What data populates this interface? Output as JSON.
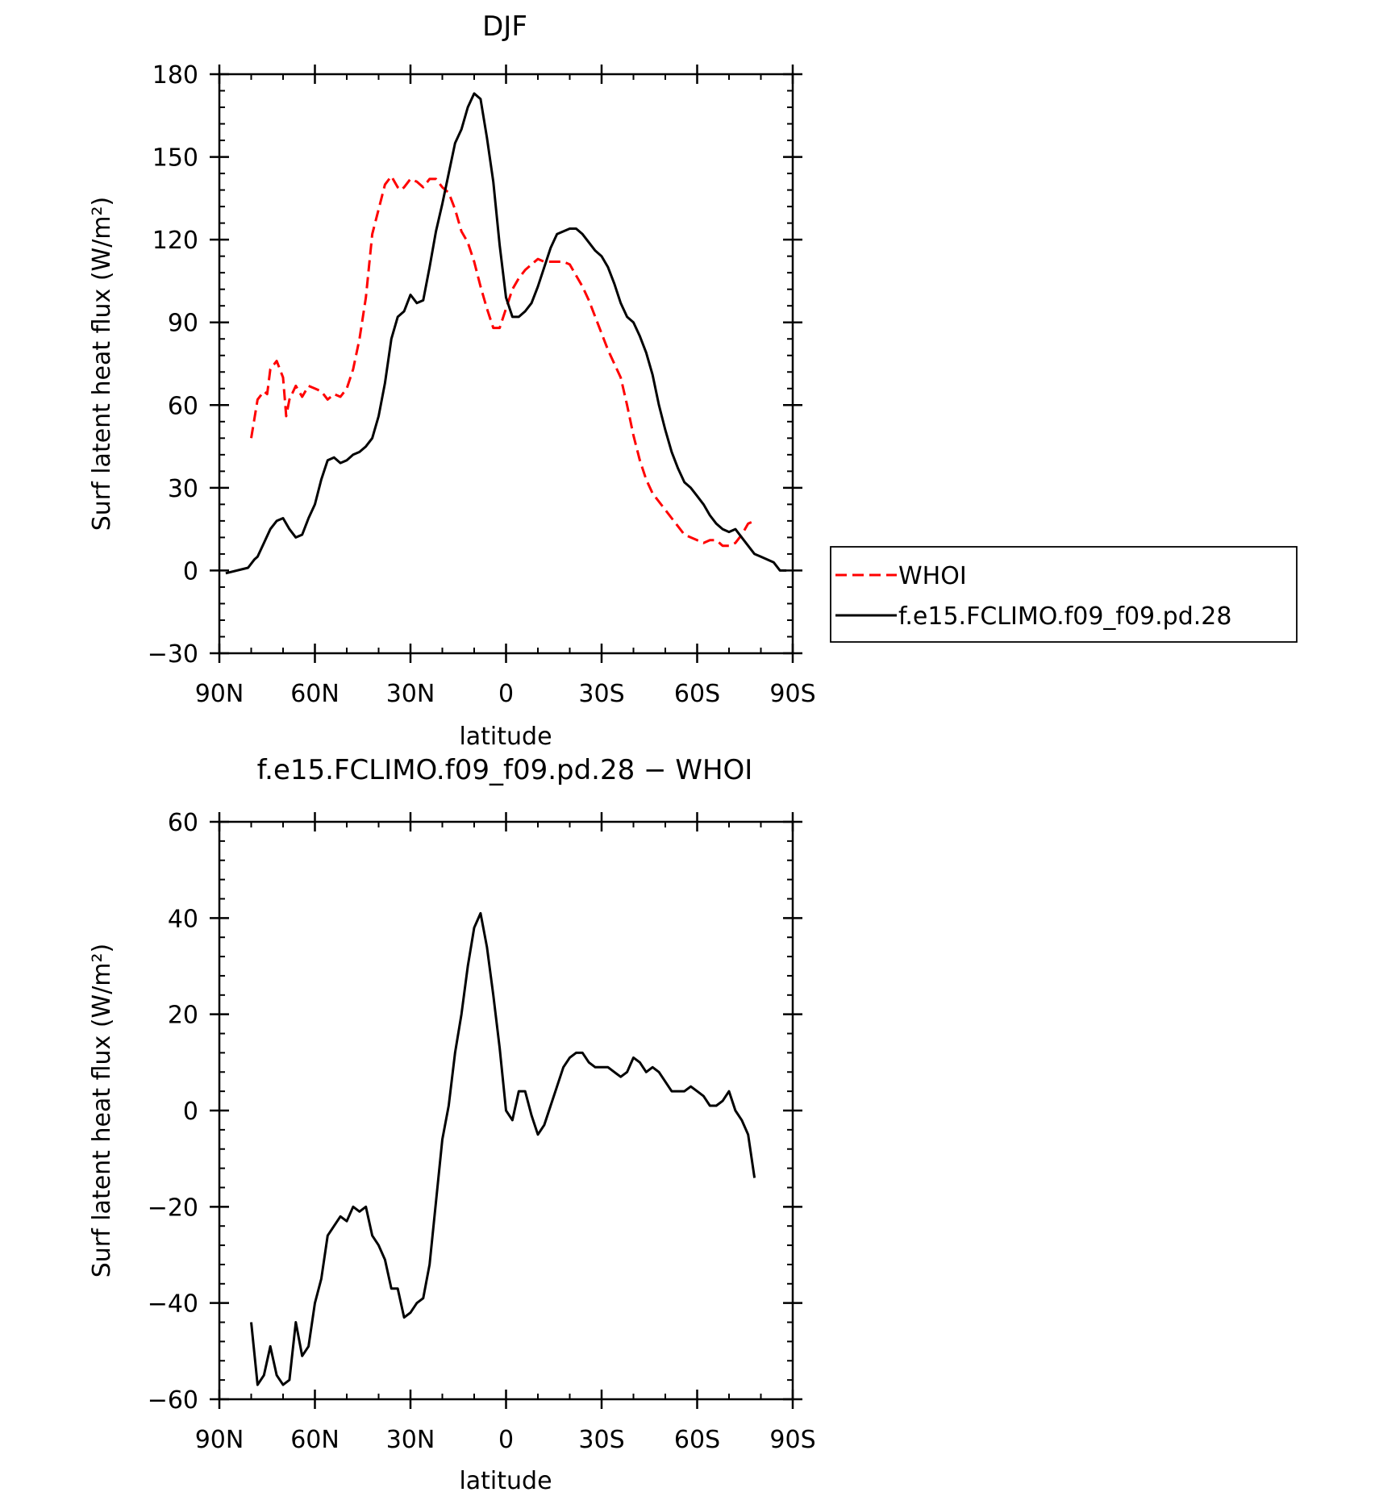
{
  "chart_data": [
    {
      "type": "line",
      "title": "DJF",
      "xlabel": "latitude",
      "ylabel": "Surf latent heat flux (W/m²)",
      "ylim": [
        -30,
        180
      ],
      "yticks": [
        -30,
        0,
        30,
        60,
        90,
        120,
        150,
        180
      ],
      "xlim": [
        90,
        -90
      ],
      "xticks": [
        90,
        60,
        30,
        0,
        -30,
        -60,
        -90
      ],
      "xticklabels": [
        "90N",
        "60N",
        "30N",
        "0",
        "30S",
        "60S",
        "90S"
      ],
      "legend": "right",
      "series": [
        {
          "name": "WHOI",
          "color": "#ff0000",
          "dash": "dashed",
          "x": [
            80,
            78,
            76,
            75,
            74,
            72,
            70,
            69,
            68,
            66,
            64,
            62,
            60,
            58,
            56,
            54,
            52,
            50,
            48,
            46,
            44,
            42,
            40,
            38,
            36,
            34,
            33,
            32,
            30,
            28,
            26,
            24,
            22,
            20,
            18,
            16,
            14,
            12,
            10,
            8,
            6,
            4,
            2,
            0,
            -2,
            -4,
            -6,
            -8,
            -10,
            -12,
            -14,
            -16,
            -18,
            -20,
            -22,
            -24,
            -26,
            -28,
            -30,
            -32,
            -34,
            -36,
            -38,
            -40,
            -42,
            -44,
            -46,
            -48,
            -50,
            -52,
            -54,
            -56,
            -58,
            -60,
            -62,
            -64,
            -66,
            -68,
            -70,
            -72,
            -74,
            -76,
            -78
          ],
          "y": [
            48,
            62,
            65,
            64,
            73,
            76,
            70,
            56,
            62,
            67,
            63,
            67,
            66,
            65,
            62,
            64,
            63,
            66,
            73,
            84,
            99,
            122,
            131,
            140,
            143,
            139,
            138,
            139,
            142,
            141,
            139,
            142,
            142,
            139,
            137,
            131,
            123,
            119,
            112,
            103,
            95,
            88,
            88,
            95,
            102,
            106,
            109,
            111,
            113,
            112,
            112,
            112,
            112,
            111,
            107,
            103,
            98,
            92,
            86,
            80,
            75,
            70,
            60,
            49,
            40,
            33,
            28,
            25,
            22,
            19,
            16,
            13,
            12,
            11,
            10,
            11,
            11,
            9,
            9,
            10,
            13,
            17,
            18
          ]
        },
        {
          "name": "f.e15.FCLIMO.f09_f09.pd.28",
          "color": "#000000",
          "dash": "solid",
          "x": [
            88,
            81,
            79,
            78,
            76,
            74,
            72,
            70,
            68,
            66,
            64,
            62,
            60,
            58,
            56,
            54,
            52,
            50,
            48,
            46,
            44,
            42,
            40,
            38,
            36,
            34,
            32,
            30,
            28,
            26,
            24,
            22,
            20,
            18,
            16,
            14,
            12,
            10,
            8,
            6,
            4,
            2,
            0,
            -2,
            -4,
            -6,
            -8,
            -10,
            -12,
            -14,
            -16,
            -18,
            -20,
            -22,
            -24,
            -26,
            -28,
            -30,
            -32,
            -34,
            -36,
            -38,
            -40,
            -42,
            -44,
            -46,
            -48,
            -50,
            -52,
            -54,
            -56,
            -58,
            -60,
            -62,
            -64,
            -66,
            -68,
            -70,
            -72,
            -74,
            -76,
            -78,
            -80,
            -82,
            -84,
            -86,
            -88
          ],
          "y": [
            -1,
            1,
            4,
            5,
            10,
            15,
            18,
            19,
            15,
            12,
            13,
            19,
            24,
            33,
            40,
            41,
            39,
            40,
            42,
            43,
            45,
            48,
            56,
            68,
            84,
            92,
            94,
            100,
            97,
            98,
            110,
            123,
            133,
            144,
            155,
            160,
            168,
            173,
            171,
            157,
            141,
            118,
            99,
            92,
            92,
            94,
            97,
            103,
            110,
            117,
            122,
            123,
            124,
            124,
            122,
            119,
            116,
            114,
            110,
            104,
            97,
            92,
            90,
            85,
            79,
            71,
            60,
            51,
            43,
            37,
            32,
            30,
            27,
            24,
            20,
            17,
            15,
            14,
            15,
            12,
            9,
            6,
            5,
            4,
            3,
            0,
            0
          ]
        }
      ]
    },
    {
      "type": "line",
      "title": "f.e15.FCLIMO.f09_f09.pd.28 − WHOI",
      "xlabel": "latitude",
      "ylabel": "Surf latent heat flux (W/m²)",
      "ylim": [
        -60,
        60
      ],
      "yticks": [
        -60,
        -40,
        -20,
        0,
        20,
        40,
        60
      ],
      "xlim": [
        90,
        -90
      ],
      "xticks": [
        90,
        60,
        30,
        0,
        -30,
        -60,
        -90
      ],
      "xticklabels": [
        "90N",
        "60N",
        "30N",
        "0",
        "30S",
        "60S",
        "90S"
      ],
      "series": [
        {
          "color": "#000000",
          "dash": "solid",
          "x": [
            80,
            78,
            76,
            74,
            72,
            70,
            68,
            66,
            64,
            62,
            60,
            58,
            56,
            54,
            52,
            50,
            48,
            46,
            44,
            42,
            40,
            38,
            36,
            34,
            32,
            30,
            28,
            26,
            24,
            22,
            20,
            18,
            16,
            14,
            12,
            10,
            8,
            6,
            4,
            2,
            0,
            -2,
            -4,
            -6,
            -8,
            -10,
            -12,
            -14,
            -16,
            -18,
            -20,
            -22,
            -24,
            -26,
            -28,
            -30,
            -32,
            -34,
            -36,
            -38,
            -40,
            -42,
            -44,
            -46,
            -48,
            -50,
            -52,
            -54,
            -56,
            -58,
            -60,
            -62,
            -64,
            -66,
            -68,
            -70,
            -72,
            -74,
            -76,
            -78
          ],
          "y": [
            -44,
            -57,
            -55,
            -49,
            -55,
            -57,
            -56,
            -44,
            -51,
            -49,
            -40,
            -35,
            -26,
            -24,
            -22,
            -23,
            -20,
            -21,
            -20,
            -26,
            -28,
            -31,
            -37,
            -37,
            -43,
            -42,
            -40,
            -39,
            -32,
            -19,
            -6,
            1,
            12,
            20,
            30,
            38,
            41,
            34,
            24,
            13,
            0,
            -2,
            4,
            4,
            -1,
            -5,
            -3,
            1,
            5,
            9,
            11,
            12,
            12,
            10,
            9,
            9,
            9,
            8,
            7,
            8,
            11,
            10,
            8,
            9,
            8,
            6,
            4,
            4,
            4,
            5,
            4,
            3,
            1,
            1,
            2,
            4,
            0,
            -2,
            -5,
            -14
          ]
        }
      ]
    }
  ]
}
